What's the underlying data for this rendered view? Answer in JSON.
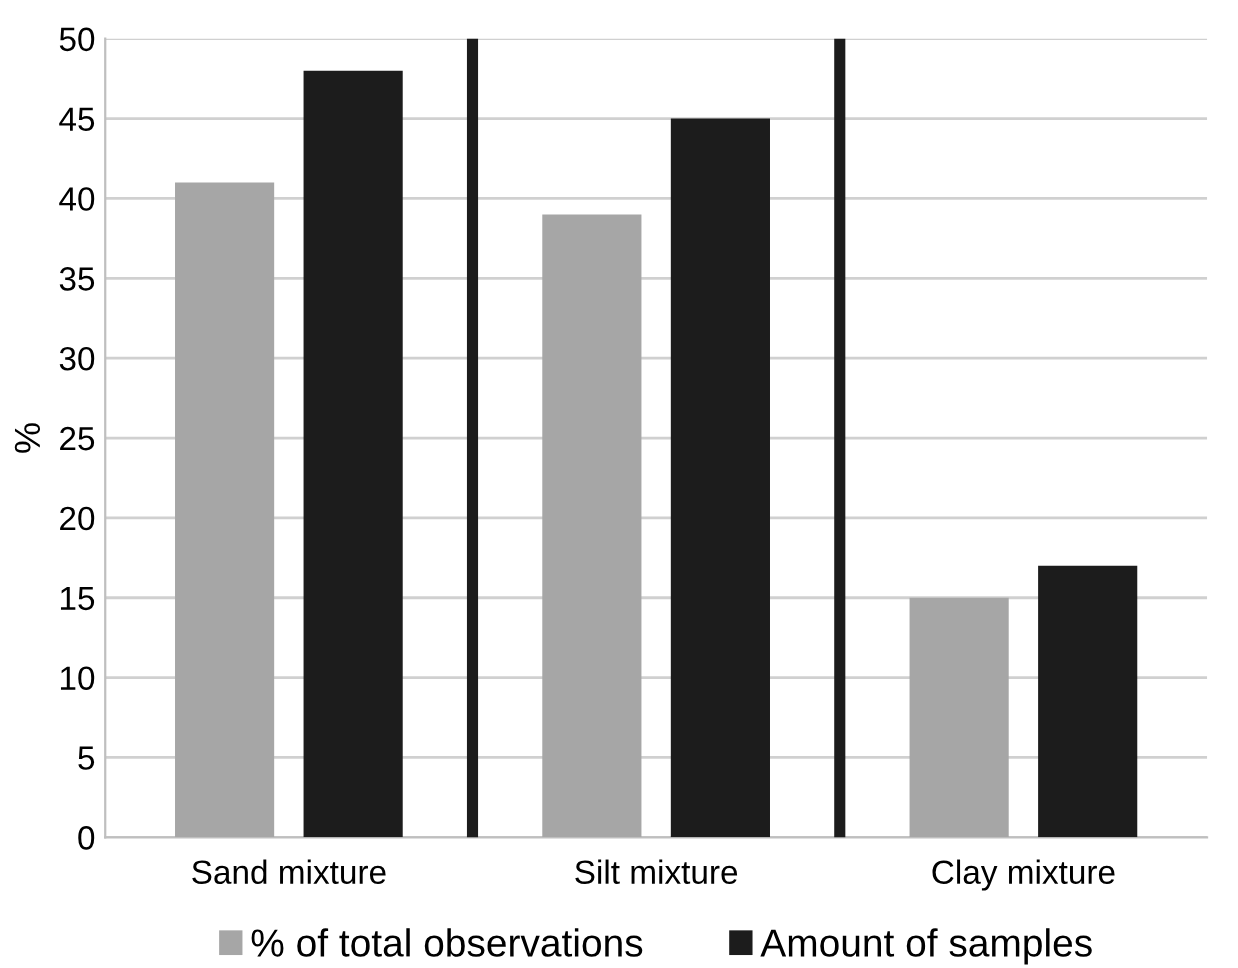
{
  "chart_data": {
    "type": "bar",
    "ylabel": "%",
    "categories": [
      "Sand mixture",
      "Silt mixture",
      "Clay mixture"
    ],
    "series": [
      {
        "name": "% of total observations",
        "color": "#a6a6a6",
        "values": [
          41,
          39,
          15
        ]
      },
      {
        "name": "Amount of samples",
        "color": "#1c1c1c",
        "values": [
          48,
          45,
          17
        ]
      }
    ],
    "ylim": [
      0,
      50
    ],
    "yticks": [
      0,
      5,
      10,
      15,
      20,
      25,
      30,
      35,
      40,
      45,
      50
    ],
    "grid": "y",
    "legend": "bottom"
  }
}
